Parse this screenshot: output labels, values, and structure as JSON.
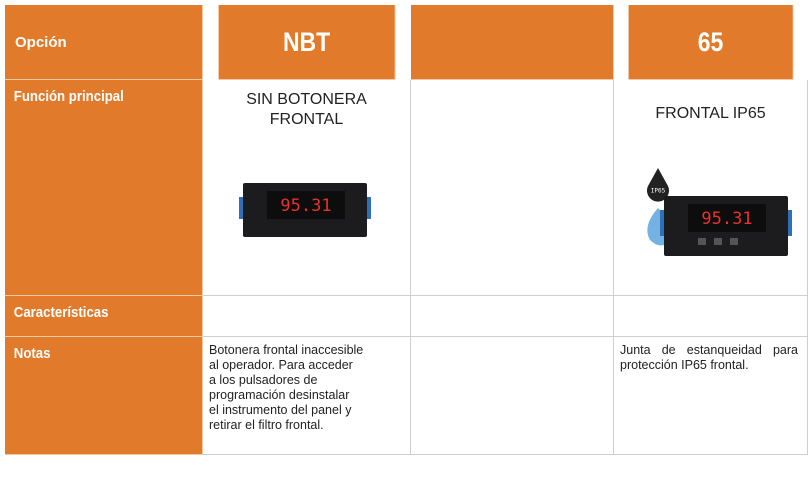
{
  "table": {
    "header": {
      "label": "Opción",
      "columns": [
        "NBT",
        "65"
      ]
    },
    "rows": [
      {
        "label": "Función principal",
        "cells": [
          {
            "lines": [
              "SIN BOTONERA",
              "FRONTAL"
            ],
            "display": "95.31"
          },
          {
            "lines": [
              "FRONTAL IP65"
            ],
            "display": "95.31",
            "badge": "IP65"
          }
        ]
      },
      {
        "label": "Características"
      },
      {
        "label": "Notas",
        "cells": [
          {
            "lines": [
              "Botonera frontal inaccesible",
              "al operador. Para acceder",
              "a los pulsadores de",
              "programación desinstalar",
              "el instrumento del panel y",
              "retirar el filtro frontal."
            ]
          },
          {
            "text": "Junta de estanqueidad para protección IP65 frontal."
          }
        ]
      }
    ]
  }
}
